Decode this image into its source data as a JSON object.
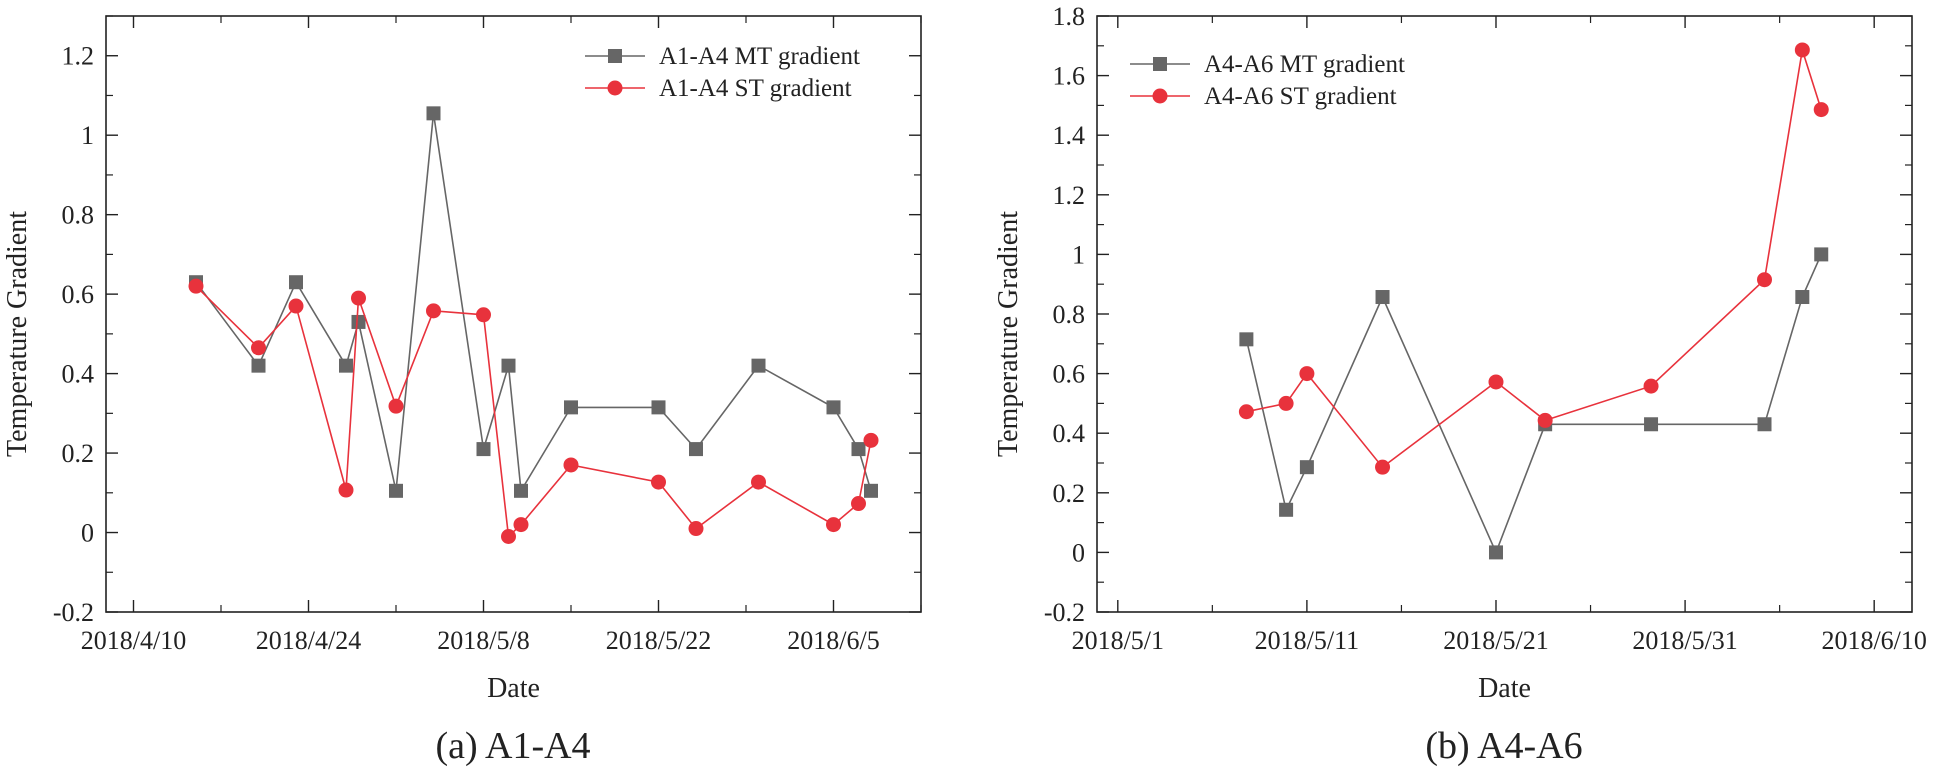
{
  "chart_data": [
    {
      "type": "line",
      "caption": "(a) A1-A4",
      "xlabel": "Date",
      "ylabel": "Temperature Gradient",
      "x_ticks": [
        "2018/4/10",
        "2018/4/24",
        "2018/5/8",
        "2018/5/22",
        "2018/6/5"
      ],
      "x_tick_days": [
        0,
        14,
        28,
        42,
        56
      ],
      "xlim": [
        -2.2,
        63
      ],
      "ylim": [
        -0.2,
        1.3
      ],
      "y_ticks": [
        -0.2,
        0,
        0.2,
        0.4,
        0.6,
        0.8,
        1,
        1.2
      ],
      "y_tick_labels": [
        "-0.2",
        "0",
        "0.2",
        "0.4",
        "0.6",
        "0.8",
        "1",
        "1.2"
      ],
      "legend_position": "top-right",
      "series": [
        {
          "name": "A1-A4 MT gradient",
          "marker": "square",
          "color": "#666666",
          "x": [
            5,
            10,
            13,
            17,
            18,
            21,
            24,
            28,
            30,
            31,
            35,
            42,
            45,
            50,
            56,
            58,
            59
          ],
          "y": [
            0.63,
            0.42,
            0.63,
            0.42,
            0.53,
            0.105,
            1.055,
            0.21,
            0.42,
            0.105,
            0.315,
            0.315,
            0.21,
            0.42,
            0.315,
            0.21,
            0.105
          ]
        },
        {
          "name": "A1-A4 ST gradient",
          "marker": "circle",
          "color": "#e8323c",
          "x": [
            5,
            10,
            13,
            17,
            18,
            21,
            24,
            28,
            30,
            31,
            35,
            42,
            45,
            50,
            56,
            58,
            59
          ],
          "y": [
            0.62,
            0.465,
            0.57,
            0.107,
            0.59,
            0.318,
            0.558,
            0.548,
            -0.01,
            0.02,
            0.17,
            0.127,
            0.01,
            0.127,
            0.02,
            0.073,
            0.232
          ]
        }
      ]
    },
    {
      "type": "line",
      "caption": "(b) A4-A6",
      "xlabel": "Date",
      "ylabel": "Temperature Gradient",
      "x_ticks": [
        "2018/5/1",
        "2018/5/11",
        "2018/5/21",
        "2018/5/31",
        "2018/6/10"
      ],
      "x_tick_days": [
        0,
        10,
        20,
        30,
        40
      ],
      "xlim": [
        -1.1,
        42
      ],
      "ylim": [
        -0.2,
        1.8
      ],
      "y_ticks": [
        -0.2,
        0,
        0.2,
        0.4,
        0.6,
        0.8,
        1,
        1.2,
        1.4,
        1.6,
        1.8
      ],
      "y_tick_labels": [
        "-0.2",
        "0",
        "0.2",
        "0.4",
        "0.6",
        "0.8",
        "1",
        "1.2",
        "1.4",
        "1.6",
        "1.8"
      ],
      "legend_position": "top-left",
      "series": [
        {
          "name": "A4-A6 MT gradient",
          "marker": "square",
          "color": "#666666",
          "x": [
            6.8,
            8.9,
            10,
            14,
            20,
            22.6,
            28.2,
            34.2,
            36.2,
            37.2
          ],
          "y": [
            0.715,
            0.143,
            0.286,
            0.857,
            0.0,
            0.43,
            0.43,
            0.43,
            0.857,
            1.0
          ]
        },
        {
          "name": "A4-A6 ST gradient",
          "marker": "circle",
          "color": "#e8323c",
          "x": [
            6.8,
            8.9,
            10,
            14,
            20,
            22.6,
            28.2,
            34.2,
            36.2,
            37.2
          ],
          "y": [
            0.472,
            0.5,
            0.6,
            0.286,
            0.572,
            0.443,
            0.558,
            0.915,
            1.686,
            1.486
          ]
        }
      ]
    }
  ]
}
